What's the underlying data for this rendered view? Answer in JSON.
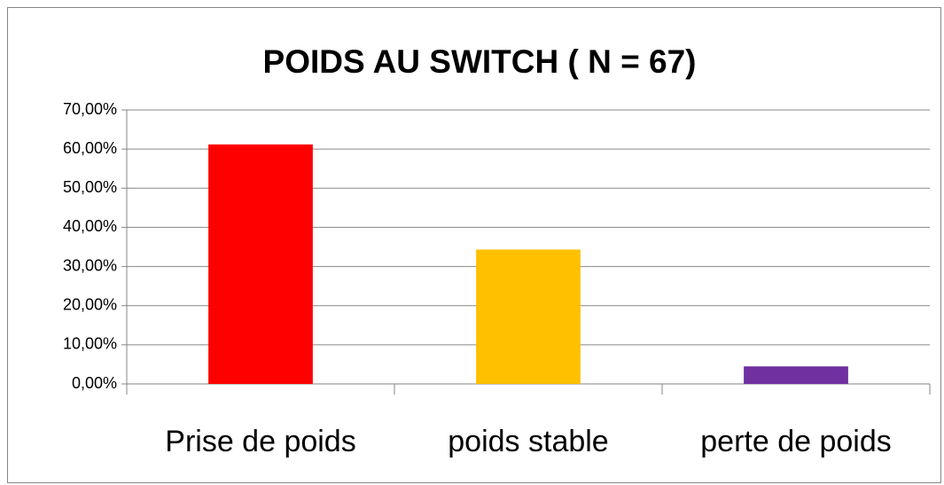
{
  "chart_data": {
    "type": "bar",
    "title": "POIDS AU SWITCH ( N = 67)",
    "categories": [
      "Prise de poids",
      "poids stable",
      "perte de poids"
    ],
    "values": [
      61.19,
      34.33,
      4.48
    ],
    "colors": [
      "#ff0000",
      "#ffc000",
      "#7030a0"
    ],
    "ylim": [
      0,
      70
    ],
    "yticks": [
      {
        "value": 0,
        "label": "0,00%"
      },
      {
        "value": 10,
        "label": "10,00%"
      },
      {
        "value": 20,
        "label": "20,00%"
      },
      {
        "value": 30,
        "label": "30,00%"
      },
      {
        "value": 40,
        "label": "40,00%"
      },
      {
        "value": 50,
        "label": "50,00%"
      },
      {
        "value": 60,
        "label": "60,00%"
      },
      {
        "value": 70,
        "label": "70,00%"
      }
    ],
    "grid": true
  }
}
